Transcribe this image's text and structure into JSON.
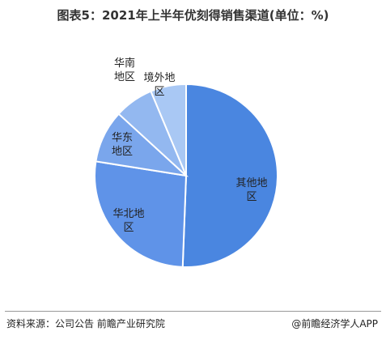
{
  "chart_data": {
    "type": "pie",
    "title": "图表5：2021年上半年优刻得销售渠道(单位：%)",
    "categories": [
      "其他地区",
      "华北地区",
      "华东地区",
      "华南地区",
      "境外地区"
    ],
    "values": [
      50.6,
      26.9,
      9.3,
      6.9,
      6.3
    ],
    "colors": [
      "#4a86e0",
      "#5f93e8",
      "#7aa6ec",
      "#93b8f0",
      "#a9c8f4"
    ],
    "source": "资料来源：公司公告 前瞻产业研究院",
    "brand": "@前瞻经济学人APP"
  }
}
